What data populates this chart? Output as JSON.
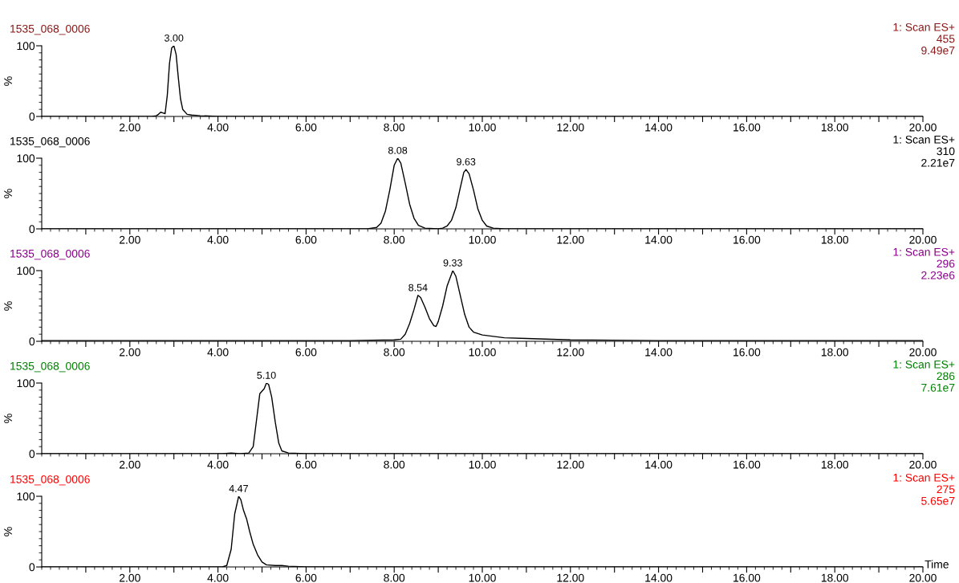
{
  "chart_data": [
    {
      "type": "line",
      "title": "1535_068_0006",
      "ylabel": "%",
      "xlim": [
        0,
        20
      ],
      "ylim": [
        0,
        100
      ],
      "yticks": [
        0,
        100
      ],
      "xticks": [
        {
          "value": 1,
          "label": null
        },
        {
          "value": 2,
          "label": "2.00"
        },
        {
          "value": 3,
          "label": null
        },
        {
          "value": 4,
          "label": "4.00"
        },
        {
          "value": 5,
          "label": null
        },
        {
          "value": 6,
          "label": "6.00"
        },
        {
          "value": 7,
          "label": null
        },
        {
          "value": 8,
          "label": "8.00"
        },
        {
          "value": 9,
          "label": null
        },
        {
          "value": 10,
          "label": "10.00"
        },
        {
          "value": 11,
          "label": null
        },
        {
          "value": 12,
          "label": "12.00"
        },
        {
          "value": 13,
          "label": null
        },
        {
          "value": 14,
          "label": "14.00"
        },
        {
          "value": 15,
          "label": null
        },
        {
          "value": 16,
          "label": "16.00"
        },
        {
          "value": 17,
          "label": null
        },
        {
          "value": 18,
          "label": "18.00"
        },
        {
          "value": 19,
          "label": null
        },
        {
          "value": 20,
          "label": "20.00"
        }
      ],
      "grid": false,
      "annotations": [
        "1: Scan ES+",
        "455",
        "9.49e7",
        {
          "text": "3.00",
          "x": 3.0,
          "y": 100
        }
      ],
      "series": [
        {
          "color": "#000000",
          "x": [
            0,
            2.5,
            2.6,
            2.65,
            2.7,
            2.75,
            2.8,
            2.85,
            2.9,
            2.95,
            3.0,
            3.05,
            3.1,
            3.15,
            3.2,
            3.3,
            3.4,
            3.6,
            4.0,
            20
          ],
          "values": [
            0,
            0,
            1,
            3,
            6,
            5,
            4,
            30,
            75,
            97,
            100,
            88,
            55,
            25,
            10,
            3,
            2,
            1,
            0,
            0
          ]
        }
      ]
    },
    {
      "type": "line",
      "title": "1535_068_0006",
      "ylabel": "%",
      "xlim": [
        0,
        20
      ],
      "ylim": [
        0,
        100
      ],
      "yticks": [
        0,
        100
      ],
      "xticks": [
        {
          "value": 1,
          "label": null
        },
        {
          "value": 2,
          "label": "2.00"
        },
        {
          "value": 3,
          "label": null
        },
        {
          "value": 4,
          "label": "4.00"
        },
        {
          "value": 5,
          "label": null
        },
        {
          "value": 6,
          "label": "6.00"
        },
        {
          "value": 7,
          "label": null
        },
        {
          "value": 8,
          "label": "8.00"
        },
        {
          "value": 9,
          "label": null
        },
        {
          "value": 10,
          "label": "10.00"
        },
        {
          "value": 11,
          "label": null
        },
        {
          "value": 12,
          "label": "12.00"
        },
        {
          "value": 13,
          "label": null
        },
        {
          "value": 14,
          "label": "14.00"
        },
        {
          "value": 15,
          "label": null
        },
        {
          "value": 16,
          "label": "16.00"
        },
        {
          "value": 17,
          "label": null
        },
        {
          "value": 18,
          "label": "18.00"
        },
        {
          "value": 19,
          "label": null
        },
        {
          "value": 20,
          "label": "20.00"
        }
      ],
      "grid": false,
      "annotations": [
        "1: Scan ES+",
        "310",
        "2.21e7",
        {
          "text": "8.08",
          "x": 8.08,
          "y": 100
        },
        {
          "text": "9.63",
          "x": 9.63,
          "y": 84
        }
      ],
      "series": [
        {
          "color": "#000000",
          "x": [
            0,
            7.4,
            7.6,
            7.7,
            7.8,
            7.9,
            8.0,
            8.08,
            8.15,
            8.25,
            8.35,
            8.45,
            8.55,
            8.7,
            9.0,
            9.1,
            9.2,
            9.3,
            9.4,
            9.5,
            9.58,
            9.63,
            9.7,
            9.8,
            9.9,
            10.0,
            10.1,
            10.25,
            10.5,
            20
          ],
          "values": [
            0,
            0,
            2,
            8,
            25,
            55,
            90,
            100,
            93,
            65,
            35,
            15,
            5,
            1,
            0,
            1,
            4,
            12,
            30,
            58,
            80,
            84,
            78,
            55,
            28,
            12,
            4,
            1,
            0,
            0
          ]
        }
      ]
    },
    {
      "type": "line",
      "title": "1535_068_0006",
      "ylabel": "%",
      "xlim": [
        0,
        20
      ],
      "ylim": [
        0,
        100
      ],
      "yticks": [
        0,
        100
      ],
      "xticks": [
        {
          "value": 1,
          "label": null
        },
        {
          "value": 2,
          "label": "2.00"
        },
        {
          "value": 3,
          "label": null
        },
        {
          "value": 4,
          "label": "4.00"
        },
        {
          "value": 5,
          "label": null
        },
        {
          "value": 6,
          "label": "6.00"
        },
        {
          "value": 7,
          "label": null
        },
        {
          "value": 8,
          "label": "8.00"
        },
        {
          "value": 9,
          "label": null
        },
        {
          "value": 10,
          "label": "10.00"
        },
        {
          "value": 11,
          "label": null
        },
        {
          "value": 12,
          "label": "12.00"
        },
        {
          "value": 13,
          "label": null
        },
        {
          "value": 14,
          "label": "14.00"
        },
        {
          "value": 15,
          "label": null
        },
        {
          "value": 16,
          "label": "16.00"
        },
        {
          "value": 17,
          "label": null
        },
        {
          "value": 18,
          "label": "18.00"
        },
        {
          "value": 19,
          "label": null
        },
        {
          "value": 20,
          "label": "20.00"
        }
      ],
      "grid": false,
      "annotations": [
        "1: Scan ES+",
        "296",
        "2.23e6",
        {
          "text": "8.54",
          "x": 8.54,
          "y": 65
        },
        {
          "text": "9.33",
          "x": 9.33,
          "y": 100
        }
      ],
      "series": [
        {
          "color": "#000000",
          "x": [
            0,
            4,
            7,
            8.0,
            8.15,
            8.25,
            8.35,
            8.45,
            8.54,
            8.6,
            8.7,
            8.8,
            8.9,
            8.95,
            9.0,
            9.1,
            9.2,
            9.33,
            9.4,
            9.5,
            9.6,
            9.7,
            9.8,
            10.0,
            10.5,
            11,
            12,
            14,
            20
          ],
          "values": [
            1,
            1,
            1,
            2,
            3,
            10,
            25,
            45,
            65,
            62,
            48,
            32,
            22,
            21,
            28,
            50,
            78,
            100,
            92,
            65,
            38,
            20,
            13,
            9,
            5,
            4,
            2,
            1,
            1
          ]
        }
      ]
    },
    {
      "type": "line",
      "title": "1535_068_0006",
      "ylabel": "%",
      "xlim": [
        0,
        20
      ],
      "ylim": [
        0,
        100
      ],
      "yticks": [
        0,
        100
      ],
      "xticks": [
        {
          "value": 1,
          "label": null
        },
        {
          "value": 2,
          "label": "2.00"
        },
        {
          "value": 3,
          "label": null
        },
        {
          "value": 4,
          "label": "4.00"
        },
        {
          "value": 5,
          "label": null
        },
        {
          "value": 6,
          "label": "6.00"
        },
        {
          "value": 7,
          "label": null
        },
        {
          "value": 8,
          "label": "8.00"
        },
        {
          "value": 9,
          "label": null
        },
        {
          "value": 10,
          "label": "10.00"
        },
        {
          "value": 11,
          "label": null
        },
        {
          "value": 12,
          "label": "12.00"
        },
        {
          "value": 13,
          "label": null
        },
        {
          "value": 14,
          "label": "14.00"
        },
        {
          "value": 15,
          "label": null
        },
        {
          "value": 16,
          "label": "16.00"
        },
        {
          "value": 17,
          "label": null
        },
        {
          "value": 18,
          "label": "18.00"
        },
        {
          "value": 19,
          "label": null
        },
        {
          "value": 20,
          "label": "20.00"
        }
      ],
      "grid": false,
      "annotations": [
        "1: Scan ES+",
        "286",
        "7.61e7",
        {
          "text": "5.10",
          "x": 5.1,
          "y": 100
        }
      ],
      "series": [
        {
          "color": "#000000",
          "x": [
            0,
            4.1,
            4.3,
            4.5,
            4.7,
            4.8,
            4.88,
            4.95,
            5.05,
            5.1,
            5.15,
            5.22,
            5.3,
            5.38,
            5.45,
            5.6,
            6,
            20
          ],
          "values": [
            0,
            0,
            1,
            0,
            1,
            10,
            50,
            85,
            92,
            100,
            98,
            80,
            45,
            15,
            4,
            1,
            0,
            0
          ]
        }
      ]
    },
    {
      "type": "line",
      "title": "1535_068_0006",
      "ylabel": "%",
      "xlabel": "Time",
      "xlim": [
        0,
        20
      ],
      "ylim": [
        0,
        100
      ],
      "yticks": [
        0,
        100
      ],
      "xticks": [
        {
          "value": 1,
          "label": null
        },
        {
          "value": 2,
          "label": "2.00"
        },
        {
          "value": 3,
          "label": null
        },
        {
          "value": 4,
          "label": "4.00"
        },
        {
          "value": 5,
          "label": null
        },
        {
          "value": 6,
          "label": "6.00"
        },
        {
          "value": 7,
          "label": null
        },
        {
          "value": 8,
          "label": "8.00"
        },
        {
          "value": 9,
          "label": null
        },
        {
          "value": 10,
          "label": "10.00"
        },
        {
          "value": 11,
          "label": null
        },
        {
          "value": 12,
          "label": "12.00"
        },
        {
          "value": 13,
          "label": null
        },
        {
          "value": 14,
          "label": "14.00"
        },
        {
          "value": 15,
          "label": null
        },
        {
          "value": 16,
          "label": "16.00"
        },
        {
          "value": 17,
          "label": null
        },
        {
          "value": 18,
          "label": "18.00"
        },
        {
          "value": 19,
          "label": null
        },
        {
          "value": 20,
          "label": "20.00"
        }
      ],
      "grid": false,
      "annotations": [
        "1: Scan ES+",
        "275",
        "5.65e7",
        {
          "text": "4.47",
          "x": 4.47,
          "y": 100
        }
      ],
      "series": [
        {
          "color": "#000000",
          "x": [
            0,
            4.1,
            4.2,
            4.3,
            4.38,
            4.47,
            4.52,
            4.58,
            4.65,
            4.72,
            4.8,
            4.9,
            5.0,
            5.1,
            5.3,
            5.45,
            5.6,
            6,
            7,
            20
          ],
          "values": [
            0,
            0,
            2,
            25,
            75,
            100,
            95,
            80,
            68,
            50,
            32,
            17,
            7,
            3,
            2,
            2,
            1,
            0,
            0,
            0
          ]
        }
      ]
    }
  ]
}
